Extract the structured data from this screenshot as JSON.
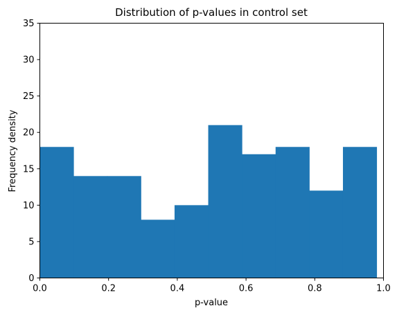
{
  "chart_data": {
    "type": "bar",
    "title": "Distribution of p-values in control set",
    "xlabel": "p-value",
    "ylabel": "Frequency density",
    "xlim": [
      0.0,
      1.0
    ],
    "ylim": [
      0,
      35
    ],
    "xticks": [
      "0.0",
      "0.2",
      "0.4",
      "0.6",
      "0.8",
      "1.0"
    ],
    "yticks": [
      "0",
      "5",
      "10",
      "15",
      "20",
      "25",
      "30",
      "35"
    ],
    "bin_edges": [
      0.0,
      0.098,
      0.196,
      0.294,
      0.392,
      0.49,
      0.588,
      0.686,
      0.784,
      0.882,
      0.98
    ],
    "values": [
      18,
      14,
      14,
      8,
      10,
      21,
      17,
      18,
      12,
      18
    ],
    "bar_color": "#1f77b4",
    "grid": false,
    "legend": "none"
  }
}
